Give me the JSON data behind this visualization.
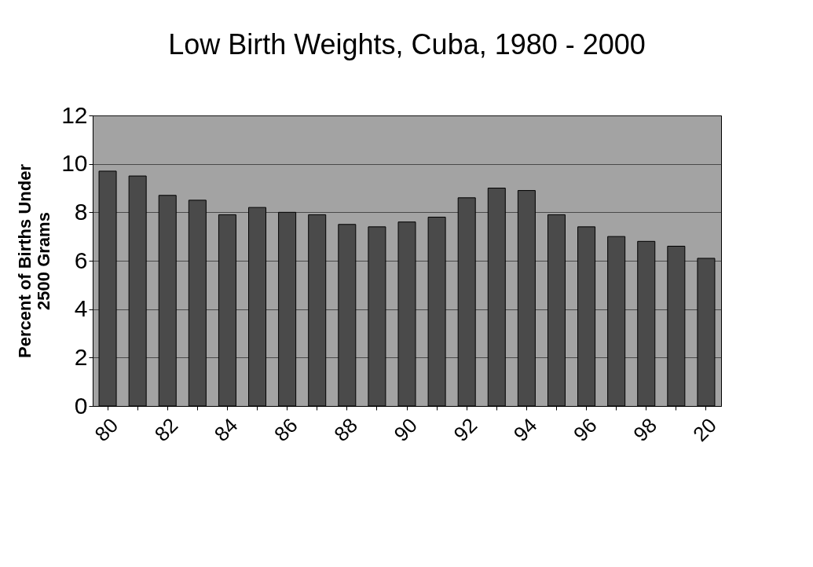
{
  "chart_data": {
    "type": "bar",
    "title": "Low Birth Weights, Cuba, 1980 - 2000",
    "ylabel": "Percent of Births Under\n2500 Grams",
    "categories": [
      "80",
      null,
      "82",
      null,
      "84",
      null,
      "86",
      null,
      "88",
      null,
      "90",
      null,
      "92",
      null,
      "94",
      null,
      "96",
      null,
      "98",
      null,
      "20"
    ],
    "values": [
      9.7,
      9.5,
      8.7,
      8.5,
      7.9,
      8.2,
      8.0,
      7.9,
      7.5,
      7.4,
      7.6,
      7.8,
      8.6,
      9.0,
      8.9,
      7.9,
      7.4,
      7.0,
      6.8,
      6.6,
      6.1
    ],
    "color": "#4a4a4a",
    "ylim": [
      0,
      12
    ],
    "yticks": [
      0,
      2,
      4,
      6,
      8,
      10,
      12
    ],
    "grid": "y"
  }
}
